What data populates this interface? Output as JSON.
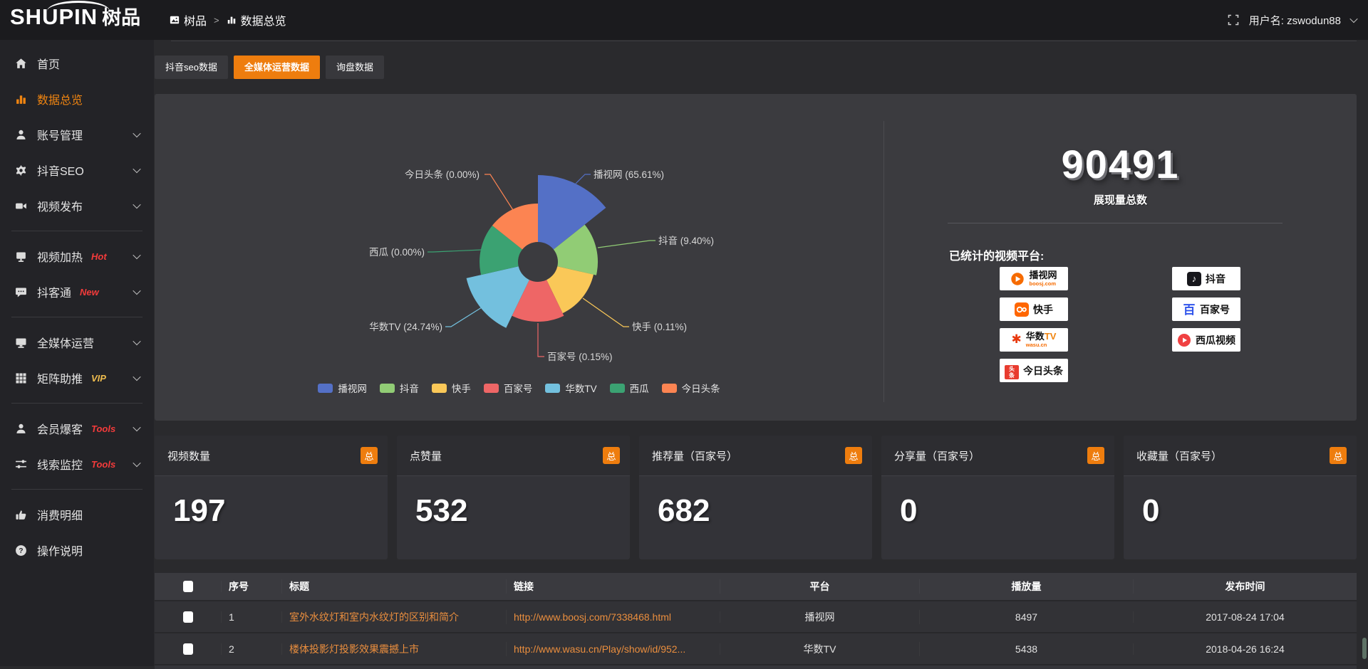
{
  "header": {
    "logo_main": "SHUPIN",
    "logo_cn": "树品",
    "breadcrumb": {
      "root": "树品",
      "sep": ">",
      "current": "数据总览"
    },
    "user_label": "用户名:",
    "username": "zswodun88"
  },
  "sidebar": {
    "items": [
      {
        "key": "home",
        "icon": "home",
        "label": "首页"
      },
      {
        "key": "data-overview",
        "icon": "chart",
        "label": "数据总览",
        "active": true
      },
      {
        "key": "account-manage",
        "icon": "user",
        "label": "账号管理",
        "chevron": true
      },
      {
        "key": "douyin-seo",
        "icon": "gear",
        "label": "抖音SEO",
        "chevron": true
      },
      {
        "key": "video-publish",
        "icon": "video",
        "label": "视频发布",
        "chevron": true
      },
      {
        "divider": true
      },
      {
        "key": "video-heat",
        "icon": "screen",
        "label": "视频加热",
        "badge": "Hot",
        "badge_color": "#f43b3b",
        "chevron": true
      },
      {
        "key": "douketong",
        "icon": "chat",
        "label": "抖客通",
        "badge": "New",
        "badge_color": "#f43b3b",
        "chevron": true
      },
      {
        "divider": true
      },
      {
        "key": "media-operation",
        "icon": "monitor",
        "label": "全媒体运营",
        "chevron": true
      },
      {
        "key": "matrix-boost",
        "icon": "grid",
        "label": "矩阵助推",
        "badge": "VIP",
        "badge_color": "#eebc4e",
        "chevron": true
      },
      {
        "divider": true
      },
      {
        "key": "member-baoke",
        "icon": "user",
        "label": "会员爆客",
        "badge": "Tools",
        "badge_color": "#f43b3b",
        "chevron": true
      },
      {
        "key": "clue-monitor",
        "icon": "sliders",
        "label": "线索监控",
        "badge": "Tools",
        "badge_color": "#f43b3b",
        "chevron": true
      },
      {
        "divider": true
      },
      {
        "key": "consume-detail",
        "icon": "thumb",
        "label": "消费明细"
      },
      {
        "key": "operation-guide",
        "icon": "question",
        "label": "操作说明"
      }
    ]
  },
  "tabs": [
    {
      "key": "douyin-seo-data",
      "label": "抖音seo数据",
      "active": false
    },
    {
      "key": "media-operation-data",
      "label": "全媒体运营数据",
      "active": true
    },
    {
      "key": "inquiry-data",
      "label": "询盘数据",
      "active": false
    }
  ],
  "chart_data": {
    "type": "pie",
    "style": "nightingale-rose",
    "unit": "%",
    "legend_position": "bottom",
    "series": [
      {
        "name": "播视网",
        "value": 65.61,
        "color": "#5470c6"
      },
      {
        "name": "抖音",
        "value": 9.4,
        "color": "#91cc75"
      },
      {
        "name": "快手",
        "value": 0.11,
        "color": "#fac858"
      },
      {
        "name": "百家号",
        "value": 0.15,
        "color": "#ee6666"
      },
      {
        "name": "华数TV",
        "value": 24.74,
        "color": "#73c0de"
      },
      {
        "name": "西瓜",
        "value": 0.0,
        "color": "#3ba272"
      },
      {
        "name": "今日头条",
        "value": 0.0,
        "color": "#fc8452"
      }
    ],
    "display_radii": [
      122,
      84,
      80,
      84,
      103,
      82,
      82
    ]
  },
  "summary": {
    "value": "90491",
    "label": "展现量总数"
  },
  "platforms": {
    "label": "已统计的视频平台:",
    "columns": [
      [
        {
          "id": "boosj",
          "name": "播视网",
          "sub": "boosj.com"
        },
        {
          "id": "kuaishou",
          "name": "快手"
        },
        {
          "id": "wasu",
          "name": "华数TV",
          "sub": "wasu.cn"
        },
        {
          "id": "toutiao",
          "name": "今日头条"
        }
      ],
      [
        {
          "id": "douyin",
          "name": "抖音"
        },
        {
          "id": "baijiahao",
          "name": "百家号"
        },
        {
          "id": "xigua",
          "name": "西瓜视频"
        }
      ]
    ]
  },
  "stat_cards": [
    {
      "label": "视频数量",
      "badge": "总",
      "value": "197"
    },
    {
      "label": "点赞量",
      "badge": "总",
      "value": "532"
    },
    {
      "label": "推荐量（百家号）",
      "badge": "总",
      "value": "682"
    },
    {
      "label": "分享量（百家号）",
      "badge": "总",
      "value": "0"
    },
    {
      "label": "收藏量（百家号）",
      "badge": "总",
      "value": "0"
    }
  ],
  "table": {
    "headers": {
      "no": "序号",
      "title": "标题",
      "link": "链接",
      "platform": "平台",
      "views": "播放量",
      "time": "发布时间"
    },
    "rows": [
      {
        "no": "1",
        "title": "室外水纹灯和室内水纹灯的区别和简介",
        "link": "http://www.boosj.com/7338468.html",
        "platform": "播视网",
        "views": "8497",
        "time": "2017-08-24 17:04"
      },
      {
        "no": "2",
        "title": "楼体投影灯投影效果震撼上市",
        "link": "http://www.wasu.cn/Play/show/id/952...",
        "platform": "华数TV",
        "views": "5438",
        "time": "2018-04-26 16:24"
      }
    ]
  },
  "colors": {
    "accent_orange": "#ee7d0e",
    "active_text_orange": "#f08511",
    "link_orange": "#ea8e3e",
    "hot_red": "#f43b3b",
    "vip_gold": "#eebc4e"
  }
}
